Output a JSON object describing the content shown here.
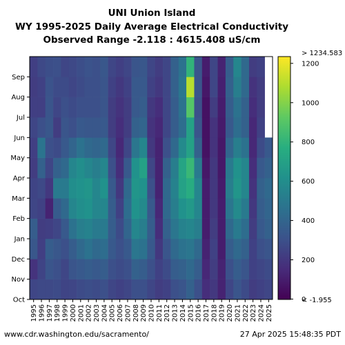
{
  "title_lines": [
    "UNI Union Island",
    "WY 1995-2025 Daily Average Electrical Conductivity",
    "Observed Range -2.118 : 4615.408 uS/cm"
  ],
  "footer": {
    "left": "www.cdr.washington.edu/sacramento/",
    "right": "27 Apr 2025 15:48:35 PDT"
  },
  "chart_data": {
    "type": "heatmap",
    "title": "UNI Union Island — WY 1995-2025 Daily Average Electrical Conductivity",
    "subtitle": "Observed Range -2.118 : 4615.408 uS/cm",
    "x": [
      "1995",
      "1996",
      "1997",
      "1998",
      "1999",
      "2000",
      "2001",
      "2002",
      "2003",
      "2004",
      "2005",
      "2006",
      "2007",
      "2008",
      "2009",
      "2010",
      "2011",
      "2012",
      "2013",
      "2014",
      "2015",
      "2016",
      "2017",
      "2018",
      "2019",
      "2020",
      "2021",
      "2022",
      "2023",
      "2024",
      "2025"
    ],
    "y": [
      "Oct",
      "Nov",
      "Dec",
      "Jan",
      "Feb",
      "Mar",
      "Apr",
      "May",
      "Jun",
      "Jul",
      "Aug",
      "Sep"
    ],
    "colorbar": {
      "ticks": [
        0,
        200,
        400,
        600,
        800,
        1000,
        1200
      ],
      "min_label": "< -1.955",
      "max_label": "> 1234.583",
      "range": [
        -1.955,
        1234.583
      ],
      "colormap": "viridis"
    },
    "monthly_mean_values": [
      [
        260,
        180,
        330,
        360,
        260,
        250,
        220,
        230,
        260,
        230,
        220,
        230
      ],
      [
        270,
        250,
        230,
        220,
        240,
        270,
        380,
        470,
        300,
        230,
        240,
        270
      ],
      [
        270,
        320,
        360,
        230,
        120,
        200,
        260,
        300,
        330,
        320,
        310,
        290
      ],
      [
        280,
        300,
        330,
        260,
        350,
        500,
        380,
        280,
        220,
        260,
        280,
        300
      ],
      [
        250,
        260,
        300,
        340,
        420,
        500,
        420,
        340,
        320,
        300,
        280,
        260
      ],
      [
        260,
        320,
        360,
        460,
        560,
        600,
        560,
        400,
        300,
        280,
        260,
        270
      ],
      [
        280,
        340,
        420,
        520,
        600,
        620,
        600,
        460,
        340,
        300,
        280,
        290
      ],
      [
        290,
        360,
        460,
        540,
        620,
        640,
        560,
        420,
        330,
        300,
        300,
        310
      ],
      [
        280,
        340,
        420,
        500,
        560,
        560,
        520,
        400,
        330,
        300,
        300,
        300
      ],
      [
        300,
        360,
        440,
        500,
        560,
        620,
        560,
        420,
        340,
        320,
        320,
        330
      ],
      [
        260,
        300,
        340,
        360,
        360,
        340,
        300,
        260,
        220,
        220,
        240,
        260
      ],
      [
        240,
        280,
        300,
        280,
        240,
        200,
        160,
        140,
        160,
        180,
        200,
        230
      ],
      [
        260,
        300,
        340,
        400,
        440,
        420,
        340,
        260,
        220,
        220,
        240,
        260
      ],
      [
        300,
        380,
        480,
        560,
        620,
        640,
        620,
        480,
        380,
        340,
        340,
        320
      ],
      [
        300,
        360,
        460,
        520,
        580,
        620,
        700,
        560,
        400,
        360,
        340,
        330
      ],
      [
        260,
        300,
        340,
        360,
        340,
        300,
        260,
        200,
        180,
        200,
        240,
        260
      ],
      [
        220,
        240,
        200,
        160,
        140,
        120,
        120,
        120,
        140,
        160,
        200,
        220
      ],
      [
        240,
        280,
        320,
        380,
        420,
        420,
        380,
        300,
        260,
        260,
        260,
        260
      ],
      [
        300,
        360,
        420,
        480,
        520,
        540,
        520,
        420,
        360,
        360,
        380,
        380
      ],
      [
        320,
        380,
        460,
        540,
        620,
        700,
        720,
        580,
        440,
        460,
        480,
        460
      ],
      [
        380,
        420,
        480,
        560,
        660,
        760,
        820,
        700,
        700,
        900,
        1100,
        800
      ],
      [
        300,
        360,
        420,
        520,
        560,
        560,
        500,
        380,
        320,
        300,
        320,
        320
      ],
      [
        160,
        140,
        120,
        100,
        100,
        100,
        80,
        60,
        60,
        60,
        80,
        100
      ],
      [
        200,
        220,
        240,
        220,
        200,
        200,
        200,
        180,
        180,
        220,
        260,
        260
      ],
      [
        120,
        120,
        100,
        100,
        100,
        90,
        80,
        80,
        90,
        100,
        110,
        120
      ],
      [
        260,
        300,
        360,
        420,
        480,
        520,
        500,
        400,
        340,
        360,
        380,
        360
      ],
      [
        320,
        360,
        420,
        500,
        580,
        640,
        620,
        520,
        440,
        460,
        520,
        560
      ],
      [
        280,
        320,
        380,
        440,
        500,
        560,
        560,
        460,
        380,
        380,
        420,
        420
      ],
      [
        220,
        240,
        240,
        220,
        200,
        180,
        160,
        140,
        140,
        160,
        180,
        220
      ],
      [
        240,
        260,
        300,
        340,
        360,
        380,
        340,
        280,
        240,
        220,
        220,
        240
      ],
      [
        260,
        280,
        320,
        380,
        400,
        420,
        380,
        340
      ]
    ]
  }
}
